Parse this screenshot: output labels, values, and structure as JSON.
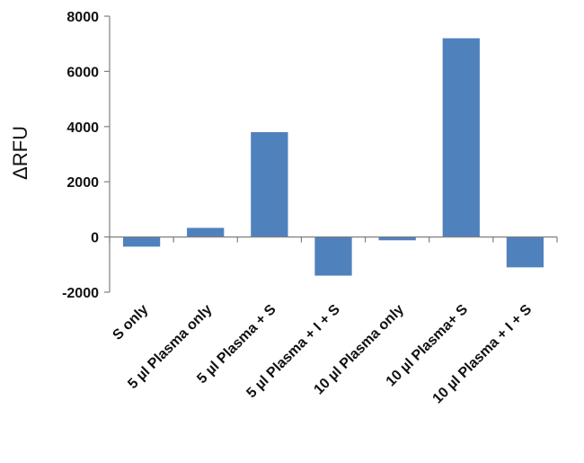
{
  "chart_data": {
    "type": "bar",
    "title": "",
    "xlabel": "",
    "ylabel": "ΔRFU",
    "ylim": [
      -2000,
      8000
    ],
    "yticks": [
      8000,
      6000,
      4000,
      2000,
      0,
      -2000
    ],
    "grid": false,
    "legend": "none",
    "bar_color": "#4f81bd",
    "categories": [
      "S only",
      "5 µl Plasma only",
      "5 µl Plasma + S",
      "5 µl Plasma + I + S",
      "10 µl Plasma only",
      "10 µl Plasma+ S",
      "10 µl Plasma + I + S"
    ],
    "values": [
      -350,
      330,
      3800,
      -1400,
      -120,
      7200,
      -1100
    ]
  }
}
